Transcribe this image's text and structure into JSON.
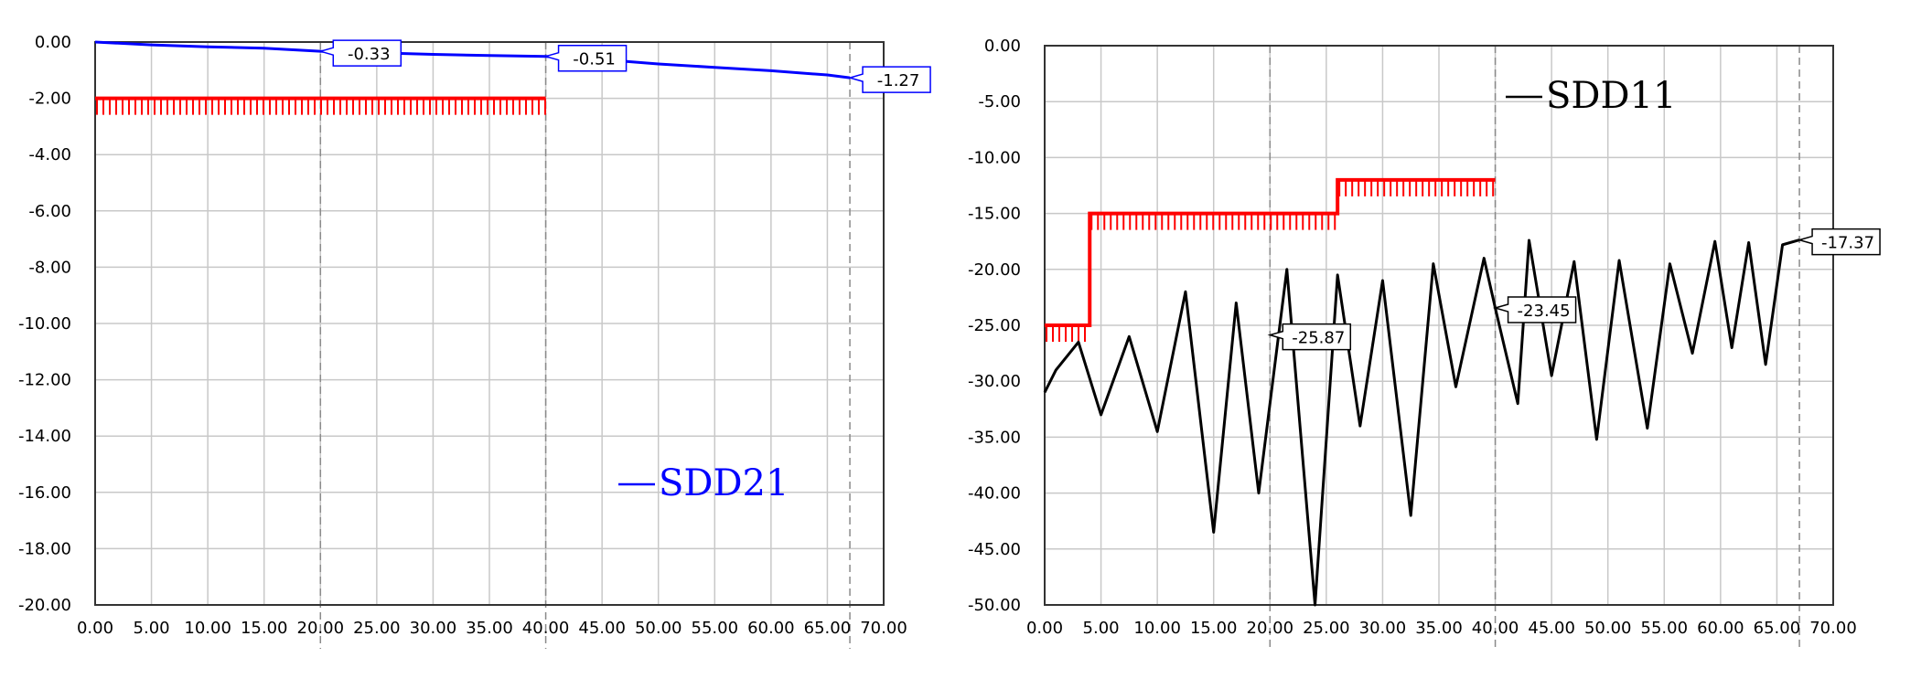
{
  "chart_data": [
    {
      "type": "line",
      "xlim": [
        0,
        70
      ],
      "ylim": [
        -20,
        0
      ],
      "x_ticks": [
        "0.00",
        "5.00",
        "10.00",
        "15.00",
        "20.00",
        "25.00",
        "30.00",
        "35.00",
        "40.00",
        "45.00",
        "50.00",
        "55.00",
        "60.00",
        "65.00",
        "70.00"
      ],
      "y_ticks": [
        "0.00",
        "-2.00",
        "-4.00",
        "-6.00",
        "-8.00",
        "-10.00",
        "-12.00",
        "-14.00",
        "-16.00",
        "-18.00",
        "-20.00"
      ],
      "grid": true,
      "legend_position": "bottom-right",
      "marker_lines_x": [
        20,
        40,
        67
      ],
      "series": [
        {
          "name": "SDD21",
          "color": "#0000ff",
          "x": [
            0,
            5,
            10,
            15,
            20,
            25,
            30,
            35,
            40,
            45,
            50,
            55,
            60,
            65,
            67
          ],
          "y": [
            0,
            -0.1,
            -0.17,
            -0.22,
            -0.33,
            -0.38,
            -0.44,
            -0.48,
            -0.51,
            -0.62,
            -0.78,
            -0.9,
            -1.02,
            -1.17,
            -1.27
          ]
        }
      ],
      "limit_line": {
        "color": "#ff0000",
        "segments": [
          {
            "x_start": 0,
            "x_end": 40,
            "y": -2.0
          }
        ]
      },
      "markers": [
        {
          "x": 20,
          "y": -0.33,
          "label": "-0.33"
        },
        {
          "x": 40,
          "y": -0.51,
          "label": "-0.51"
        },
        {
          "x": 67,
          "y": -1.27,
          "label": "-1.27"
        }
      ]
    },
    {
      "type": "line",
      "xlim": [
        0,
        70
      ],
      "ylim": [
        -50,
        0
      ],
      "x_ticks": [
        "0.00",
        "5.00",
        "10.00",
        "15.00",
        "20.00",
        "25.00",
        "30.00",
        "35.00",
        "40.00",
        "45.00",
        "50.00",
        "55.00",
        "60.00",
        "65.00",
        "70.00"
      ],
      "y_ticks": [
        "0.00",
        "-5.00",
        "-10.00",
        "-15.00",
        "-20.00",
        "-25.00",
        "-30.00",
        "-35.00",
        "-40.00",
        "-45.00",
        "-50.00"
      ],
      "grid": true,
      "legend_position": "top-right",
      "marker_lines_x": [
        20,
        40,
        67
      ],
      "series": [
        {
          "name": "SDD11",
          "color": "#000000",
          "x": [
            0,
            1,
            3,
            5,
            7.5,
            10,
            12.5,
            15,
            17,
            19,
            21.5,
            24,
            26,
            28,
            30,
            32.5,
            34.5,
            36.5,
            39,
            40,
            42,
            43,
            45,
            47,
            49,
            51,
            53.5,
            55.5,
            57.5,
            59.5,
            61,
            62.5,
            64,
            65.5,
            67
          ],
          "y": [
            -31,
            -29,
            -26.5,
            -33,
            -26,
            -34.5,
            -22,
            -43.5,
            -23,
            -40,
            -20,
            -50,
            -20.5,
            -34,
            -21,
            -42,
            -19.5,
            -30.5,
            -19,
            -23.45,
            -32,
            -17.4,
            -29.5,
            -19.3,
            -35.2,
            -19.2,
            -34.2,
            -19.5,
            -27.5,
            -17.5,
            -27,
            -17.6,
            -28.5,
            -17.8,
            -17.37
          ]
        }
      ],
      "limit_line": {
        "color": "#ff0000",
        "segments": [
          {
            "x_start": 0,
            "x_end": 4,
            "y": -25.0
          },
          {
            "x_start": 4,
            "x_end": 26,
            "y": -15.0
          },
          {
            "x_start": 26,
            "x_end": 40,
            "y": -12.0
          }
        ]
      },
      "markers": [
        {
          "x": 20,
          "y": -25.87,
          "label": "-25.87"
        },
        {
          "x": 40,
          "y": -23.45,
          "label": "-23.45"
        },
        {
          "x": 67,
          "y": -17.37,
          "label": "-17.37"
        }
      ]
    }
  ]
}
